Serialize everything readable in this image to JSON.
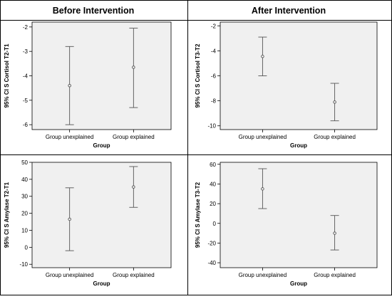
{
  "headers": {
    "left": "Before Intervention",
    "right": "After Intervention"
  },
  "colors": {
    "plot_background": "#f0f0f0",
    "border": "#000000",
    "errorbar": "#555555"
  },
  "chart_data": [
    {
      "type": "errorbar",
      "xlabel": "Group",
      "ylabel": "95% CI S Cortisol T2-T1",
      "categories": [
        "Group unexplained",
        "Group explained"
      ],
      "mean": [
        -4.4,
        -3.65
      ],
      "lower": [
        -6.0,
        -5.3
      ],
      "upper": [
        -2.8,
        -2.05
      ],
      "ylim": [
        -6.2,
        -1.8
      ],
      "yticks": [
        -6,
        -5,
        -4,
        -3,
        -2
      ]
    },
    {
      "type": "errorbar",
      "xlabel": "Group",
      "ylabel": "95% CI S Cortisol T3-T2",
      "categories": [
        "Group unexplained",
        "Group explained"
      ],
      "mean": [
        -4.45,
        -8.1
      ],
      "lower": [
        -6.0,
        -9.6
      ],
      "upper": [
        -2.9,
        -6.6
      ],
      "ylim": [
        -10.3,
        -1.7
      ],
      "yticks": [
        -10,
        -8,
        -6,
        -4,
        -2
      ]
    },
    {
      "type": "errorbar",
      "xlabel": "Group",
      "ylabel": "95% CI S Amylase T2-T1",
      "categories": [
        "Group unexplained",
        "Group explained"
      ],
      "mean": [
        16.5,
        35.5
      ],
      "lower": [
        -2,
        23.5
      ],
      "upper": [
        35,
        47.5
      ],
      "ylim": [
        -12,
        50
      ],
      "yticks": [
        -10,
        0,
        10,
        20,
        30,
        40,
        50
      ]
    },
    {
      "type": "errorbar",
      "xlabel": "Group",
      "ylabel": "95% CI S Amylase T3-T2",
      "categories": [
        "Group unexplained",
        "Group explained"
      ],
      "mean": [
        35,
        -10
      ],
      "lower": [
        15,
        -27
      ],
      "upper": [
        55.5,
        8
      ],
      "ylim": [
        -45,
        62
      ],
      "yticks": [
        -40,
        -20,
        0,
        20,
        40,
        60
      ]
    }
  ]
}
